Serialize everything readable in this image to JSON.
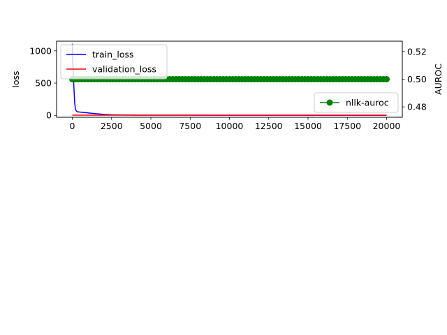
{
  "chart_data": {
    "type": "line",
    "x_ticks": [
      0,
      2500,
      5000,
      7500,
      10000,
      12500,
      15000,
      17500,
      20000
    ],
    "x_tick_labels": [
      "0",
      "2500",
      "5000",
      "7500",
      "10000",
      "12500",
      "15000",
      "17500",
      "20000"
    ],
    "xlim": [
      -1000,
      21000
    ],
    "left_axis": {
      "ylabel": "loss",
      "ylim": [
        -30,
        1150
      ],
      "ticks": [
        0,
        500,
        1000
      ],
      "tick_labels": [
        "0",
        "500",
        "1000"
      ]
    },
    "right_axis": {
      "ylabel": "AUROC",
      "ylim": [
        0.4725,
        0.5275
      ],
      "ticks": [
        0.48,
        0.5,
        0.52
      ],
      "tick_labels": [
        "0.48",
        "0.50",
        "0.52"
      ]
    },
    "series": [
      {
        "name": "train_loss",
        "axis": "left",
        "color": "#0000ff",
        "points": [
          [
            0,
            1110
          ],
          [
            50,
            700
          ],
          [
            100,
            450
          ],
          [
            150,
            200
          ],
          [
            200,
            90
          ],
          [
            300,
            55
          ],
          [
            500,
            50
          ],
          [
            1000,
            38
          ],
          [
            1500,
            25
          ],
          [
            2000,
            15
          ],
          [
            2500,
            8
          ],
          [
            3000,
            5
          ],
          [
            4000,
            3
          ],
          [
            6000,
            2
          ],
          [
            10000,
            1
          ],
          [
            15000,
            1
          ],
          [
            20000,
            1
          ]
        ]
      },
      {
        "name": "validation_loss",
        "axis": "left",
        "color": "#ff0000",
        "points": [
          [
            0,
            3
          ],
          [
            20000,
            3
          ]
        ]
      },
      {
        "name": "nllk-auroc",
        "axis": "right",
        "color": "#008000",
        "marker": "circle",
        "x_start": 0,
        "x_end": 20000,
        "x_step": 200,
        "value": 0.5
      }
    ],
    "legend_left": {
      "position": "upper-left",
      "entries": [
        "train_loss",
        "validation_loss"
      ]
    },
    "legend_right": {
      "position": "center-right",
      "entries": [
        "nllk-auroc"
      ]
    },
    "grid": false
  }
}
